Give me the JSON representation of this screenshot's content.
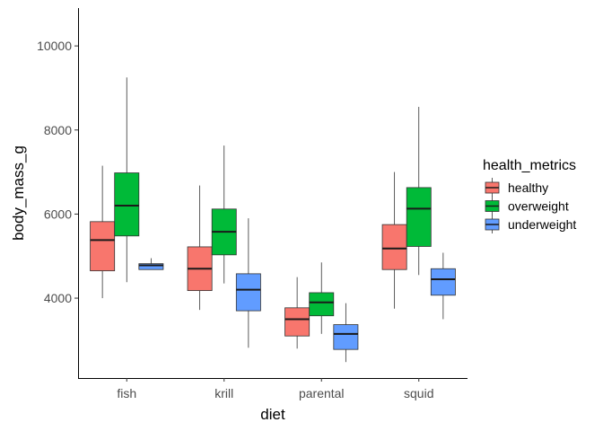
{
  "chart_data": {
    "type": "boxplot",
    "xlabel": "diet",
    "ylabel": "body_mass_g",
    "categories": [
      "fish",
      "krill",
      "parental",
      "squid"
    ],
    "ylim": [
      2100,
      10900
    ],
    "yticks": [
      4000,
      6000,
      8000,
      10000
    ],
    "grid": false,
    "legend": {
      "title": "health_metrics",
      "position": "right",
      "entries": [
        "healthy",
        "overweight",
        "underweight"
      ]
    },
    "colors": {
      "healthy": "#F8766D",
      "overweight": "#00BA38",
      "underweight": "#619CFF"
    },
    "series": [
      {
        "name": "healthy",
        "boxes": [
          {
            "category": "fish",
            "min": 4000,
            "q1": 4650,
            "median": 5380,
            "q3": 5820,
            "max": 7150
          },
          {
            "category": "krill",
            "min": 3720,
            "q1": 4180,
            "median": 4700,
            "q3": 5220,
            "max": 6680
          },
          {
            "category": "parental",
            "min": 2800,
            "q1": 3100,
            "median": 3500,
            "q3": 3770,
            "max": 4500
          },
          {
            "category": "squid",
            "min": 3750,
            "q1": 4680,
            "median": 5180,
            "q3": 5750,
            "max": 7000
          }
        ]
      },
      {
        "name": "overweight",
        "boxes": [
          {
            "category": "fish",
            "min": 4380,
            "q1": 5480,
            "median": 6200,
            "q3": 6980,
            "max": 9250
          },
          {
            "category": "krill",
            "min": 4350,
            "q1": 5030,
            "median": 5580,
            "q3": 6120,
            "max": 7630
          },
          {
            "category": "parental",
            "min": 3150,
            "q1": 3580,
            "median": 3900,
            "q3": 4130,
            "max": 4850
          },
          {
            "category": "squid",
            "min": 4550,
            "q1": 5230,
            "median": 6130,
            "q3": 6630,
            "max": 8550
          }
        ]
      },
      {
        "name": "underweight",
        "boxes": [
          {
            "category": "fish",
            "min": 4680,
            "q1": 4680,
            "median": 4780,
            "q3": 4820,
            "max": 4950
          },
          {
            "category": "krill",
            "min": 2820,
            "q1": 3700,
            "median": 4200,
            "q3": 4580,
            "max": 5900
          },
          {
            "category": "parental",
            "min": 2480,
            "q1": 2780,
            "median": 3150,
            "q3": 3370,
            "max": 3880
          },
          {
            "category": "squid",
            "min": 3500,
            "q1": 4070,
            "median": 4450,
            "q3": 4700,
            "max": 5080
          }
        ]
      }
    ]
  }
}
